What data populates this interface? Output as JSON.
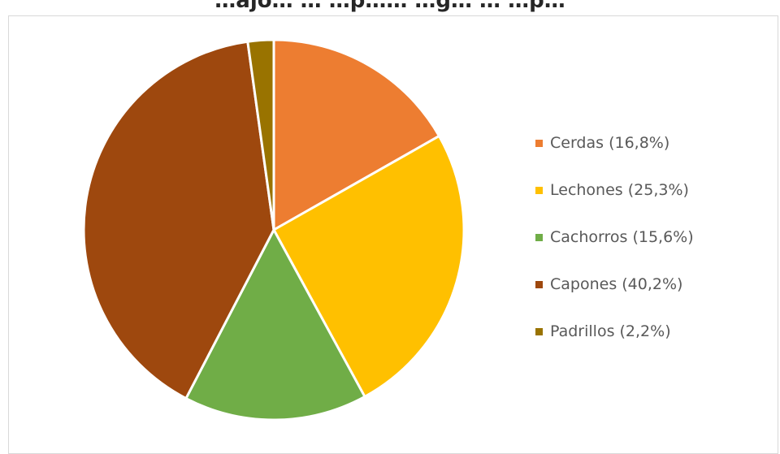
{
  "chart_data": {
    "type": "pie",
    "title": "…ajo… … …p…… …g… … …p…",
    "categories": [
      "Cerdas",
      "Lechones",
      "Cachorros",
      "Capones",
      "Padrillos"
    ],
    "values": [
      16.8,
      25.3,
      15.6,
      40.2,
      2.2
    ],
    "legend_labels": [
      "Cerdas (16,8%)",
      "Lechones (25,3%)",
      "Cachorros (15,6%)",
      "Capones (40,2%)",
      "Padrillos (2,2%)"
    ],
    "colors": [
      "#ed7d31",
      "#ffc000",
      "#70ad47",
      "#9e480e",
      "#997300"
    ],
    "legend_position": "right"
  }
}
